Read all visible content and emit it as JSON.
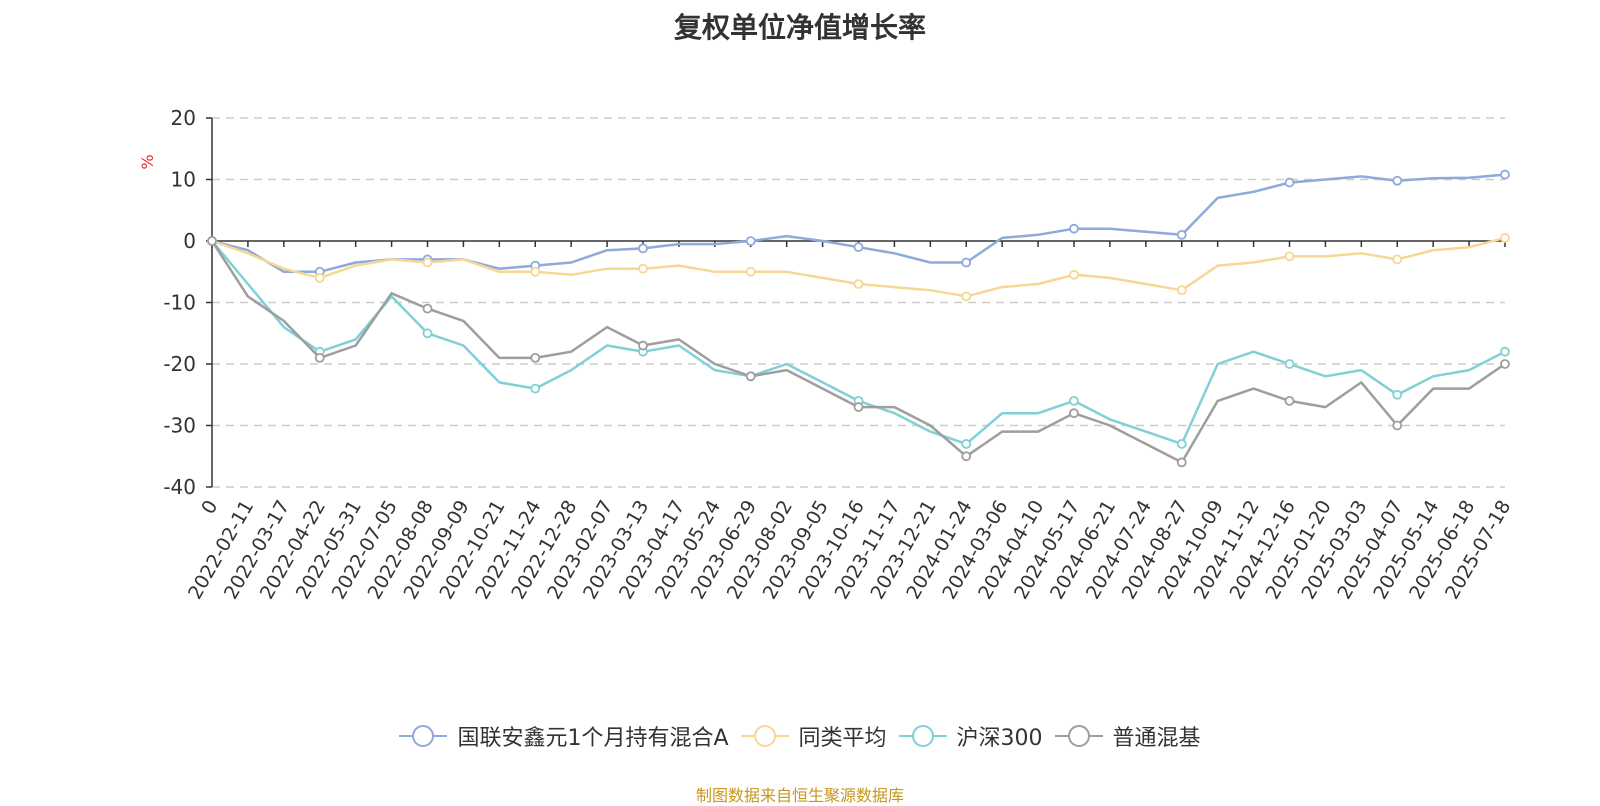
{
  "source_note": "制图数据来自恒生聚源数据库",
  "chart_data": {
    "type": "line",
    "title": "复权单位净值增长率",
    "ylabel": "%",
    "xlabel": "",
    "ylim": [
      -40,
      20
    ],
    "yticks": [
      20,
      10,
      0,
      -10,
      -20,
      -30,
      -40
    ],
    "grid": true,
    "legend_position": "bottom",
    "x_tick_labels": [
      "0",
      "2022-02-11",
      "2022-03-17",
      "2022-04-22",
      "2022-05-31",
      "2022-07-05",
      "2022-08-08",
      "2022-09-09",
      "2022-10-21",
      "2022-11-24",
      "2022-12-28",
      "2023-02-07",
      "2023-03-13",
      "2023-04-17",
      "2023-05-24",
      "2023-06-29",
      "2023-08-02",
      "2023-09-05",
      "2023-10-16",
      "2023-11-17",
      "2023-12-21",
      "2024-01-24",
      "2024-03-06",
      "2024-04-10",
      "2024-05-17",
      "2024-06-21",
      "2024-07-24",
      "2024-08-27",
      "2024-10-09",
      "2024-11-12",
      "2024-12-16",
      "2025-01-20",
      "2025-03-03",
      "2025-04-07",
      "2025-05-14",
      "2025-06-18",
      "2025-07-18"
    ],
    "series": [
      {
        "name": "国联安鑫元1个月持有混合A",
        "color": "#8eaadb",
        "values": [
          0,
          -1.5,
          -5,
          -5,
          -3.5,
          -3,
          -3,
          -3,
          -4.5,
          -4,
          -3.5,
          -1.5,
          -1.2,
          -0.5,
          -0.5,
          0,
          0.8,
          0,
          -1,
          -2,
          -3.5,
          -3.5,
          0.5,
          1,
          2,
          2,
          1.5,
          1,
          7,
          8,
          9.5,
          10,
          10.5,
          9.8,
          10.2,
          10.3,
          10.8
        ]
      },
      {
        "name": "同类平均",
        "color": "#f7d794",
        "values": [
          0,
          -2,
          -4.5,
          -6,
          -4,
          -3,
          -3.5,
          -3,
          -5,
          -5,
          -5.5,
          -4.5,
          -4.5,
          -4,
          -5,
          -5,
          -5,
          -6,
          -7,
          -7.5,
          -8,
          -9,
          -7.5,
          -7,
          -5.5,
          -6,
          -7,
          -8,
          -4,
          -3.5,
          -2.5,
          -2.5,
          -2,
          -3,
          -1.5,
          -1,
          0.5
        ]
      },
      {
        "name": "沪深300",
        "color": "#7fd1d6",
        "values": [
          0,
          -7,
          -14,
          -18,
          -16,
          -9,
          -15,
          -17,
          -23,
          -24,
          -21,
          -17,
          -18,
          -17,
          -21,
          -22,
          -20,
          -23,
          -26,
          -28,
          -31,
          -33,
          -28,
          -28,
          -26,
          -29,
          -31,
          -33,
          -20,
          -18,
          -20,
          -22,
          -21,
          -25,
          -22,
          -21,
          -18
        ]
      },
      {
        "name": "普通混基",
        "color": "#9e9e9e",
        "values": [
          0,
          -9,
          -13,
          -19,
          -17,
          -8.5,
          -11,
          -13,
          -19,
          -19,
          -18,
          -14,
          -17,
          -16,
          -20,
          -22,
          -21,
          -24,
          -27,
          -27,
          -30,
          -35,
          -31,
          -31,
          -28,
          -30,
          -33,
          -36,
          -26,
          -24,
          -26,
          -27,
          -23,
          -30,
          -24,
          -24,
          -20
        ]
      }
    ]
  }
}
